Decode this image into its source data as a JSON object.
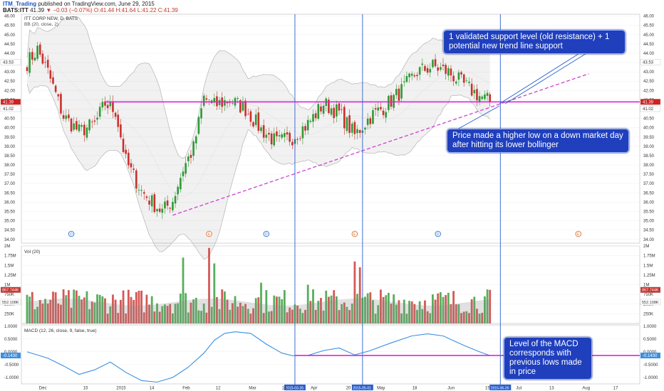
{
  "header": {
    "brand": "ITM_Trading",
    "published_text": "published on TradingView.com, June 29, 2015",
    "symbol": "BATS:ITT",
    "last": "41.39",
    "change": "▼ −0.03 (−0.07%)",
    "ohlc": "O:41.44 H:41.64 L:41.22 C:41.39"
  },
  "annotations": {
    "support": "1 validated support level (old resistance) + 1 potential new trend line support",
    "higher_low": "Price made a higher low on a down market day after hitting its lower bollinger",
    "macd": "Level of the MACD corresponds with previous lows made in price"
  },
  "colors": {
    "up": "#2e9a35",
    "down": "#c9302c",
    "support": "#e020e0",
    "trend": "#d040d0",
    "bollinger": "#bbbbbb",
    "vline": "#2a5fd0",
    "macd": "#3a8fe0",
    "annotation_bg": "#1f3fbd"
  },
  "chart_data": [
    {
      "type": "candlestick",
      "title": "ITT CORP NEW, D, BATS",
      "indicator": "BB (20, close, 2)",
      "ylim": [
        33.8,
        46.1
      ],
      "yticks": [
        "34.00",
        "34.50",
        "35.00",
        "35.50",
        "36.00",
        "36.50",
        "37.00",
        "37.50",
        "38.00",
        "38.50",
        "39.00",
        "39.50",
        "40.00",
        "40.50",
        "41.00",
        "41.50",
        "42.00",
        "42.50",
        "43.00",
        "43.50",
        "44.00",
        "44.50",
        "45.00",
        "45.50",
        "46.00"
      ],
      "xticks": [
        "Dec",
        "15",
        "2015",
        "14",
        "Feb",
        "12",
        "Mar",
        "16",
        "Apr",
        "20",
        "May",
        "18",
        "Jun",
        "15",
        "Jul",
        "13",
        "Aug",
        "17"
      ],
      "price_tags": [
        "43.53",
        "41.39",
        "41.02"
      ],
      "support_level": 41.39,
      "trendline": {
        "start": [
          "2015-01-29",
          35.3
        ],
        "end": [
          "2015-07-25",
          42.9
        ]
      },
      "anchors": [
        {
          "d": 0,
          "p": 43.5
        },
        {
          "d": 4,
          "p": 44.2
        },
        {
          "d": 8,
          "p": 43.0
        },
        {
          "d": 14,
          "p": 40.6
        },
        {
          "d": 20,
          "p": 39.8
        },
        {
          "d": 26,
          "p": 40.2
        },
        {
          "d": 30,
          "p": 41.3
        },
        {
          "d": 34,
          "p": 40.9
        },
        {
          "d": 38,
          "p": 38.2
        },
        {
          "d": 44,
          "p": 36.6
        },
        {
          "d": 48,
          "p": 36.0
        },
        {
          "d": 52,
          "p": 35.5
        },
        {
          "d": 56,
          "p": 36.1
        },
        {
          "d": 60,
          "p": 37.8
        },
        {
          "d": 64,
          "p": 38.9
        },
        {
          "d": 68,
          "p": 41.6
        },
        {
          "d": 72,
          "p": 41.2
        },
        {
          "d": 78,
          "p": 41.5
        },
        {
          "d": 84,
          "p": 41.0
        },
        {
          "d": 90,
          "p": 39.9
        },
        {
          "d": 96,
          "p": 39.2
        },
        {
          "d": 102,
          "p": 39.5
        },
        {
          "d": 108,
          "p": 40.2
        },
        {
          "d": 114,
          "p": 41.3
        },
        {
          "d": 120,
          "p": 40.8
        },
        {
          "d": 126,
          "p": 39.6
        },
        {
          "d": 132,
          "p": 40.6
        },
        {
          "d": 138,
          "p": 41.2
        },
        {
          "d": 144,
          "p": 42.0
        },
        {
          "d": 150,
          "p": 43.0
        },
        {
          "d": 156,
          "p": 43.3
        },
        {
          "d": 162,
          "p": 43.0
        },
        {
          "d": 168,
          "p": 42.3
        },
        {
          "d": 174,
          "p": 41.7
        },
        {
          "d": 178,
          "p": 41.4
        }
      ],
      "events": [
        "D",
        "E",
        "D",
        "E",
        "D",
        "E"
      ]
    },
    {
      "type": "bar",
      "title": "Vol (20)",
      "ylim": [
        0,
        2000000
      ],
      "yticks": [
        "250K",
        "500K",
        "750K",
        "1M",
        "1.25M",
        "1.5M",
        "1.75M",
        "2M"
      ],
      "price_tags": [
        "867.744K",
        "552.108K"
      ],
      "average_level": 552108,
      "last_value": 867744,
      "spikes": [
        {
          "d": 60,
          "v": 1700000
        },
        {
          "d": 70,
          "v": 1950000
        },
        {
          "d": 72,
          "v": 1550000
        },
        {
          "d": 90,
          "v": 1050000
        },
        {
          "d": 108,
          "v": 1000000
        },
        {
          "d": 126,
          "v": 1600000
        },
        {
          "d": 128,
          "v": 1450000
        },
        {
          "d": 178,
          "v": 867744
        }
      ]
    },
    {
      "type": "line",
      "title": "MACD (12, 26, close, 9, false, true)",
      "ylim": [
        -1.25,
        1.05
      ],
      "yticks": [
        "1.0000",
        "0.5000",
        "0.0000",
        "-0.5000",
        "-1.0000"
      ],
      "price_tags": [
        "-0.1430"
      ],
      "level": -0.143,
      "series": [
        {
          "x": 0,
          "y": 0.0
        },
        {
          "x": 8,
          "y": -0.25
        },
        {
          "x": 14,
          "y": -0.55
        },
        {
          "x": 20,
          "y": -0.88
        },
        {
          "x": 26,
          "y": -0.7
        },
        {
          "x": 32,
          "y": -0.4
        },
        {
          "x": 38,
          "y": -0.8
        },
        {
          "x": 44,
          "y": -1.12
        },
        {
          "x": 50,
          "y": -1.18
        },
        {
          "x": 56,
          "y": -1.0
        },
        {
          "x": 62,
          "y": -0.6
        },
        {
          "x": 68,
          "y": -0.05
        },
        {
          "x": 72,
          "y": 0.45
        },
        {
          "x": 76,
          "y": 0.72
        },
        {
          "x": 80,
          "y": 0.78
        },
        {
          "x": 86,
          "y": 0.72
        },
        {
          "x": 92,
          "y": 0.3
        },
        {
          "x": 98,
          "y": -0.05
        },
        {
          "x": 102,
          "y": -0.15
        },
        {
          "x": 108,
          "y": -0.14
        },
        {
          "x": 114,
          "y": 0.05
        },
        {
          "x": 120,
          "y": 0.15
        },
        {
          "x": 126,
          "y": -0.12
        },
        {
          "x": 132,
          "y": 0.05
        },
        {
          "x": 140,
          "y": 0.35
        },
        {
          "x": 148,
          "y": 0.62
        },
        {
          "x": 154,
          "y": 0.7
        },
        {
          "x": 160,
          "y": 0.62
        },
        {
          "x": 168,
          "y": 0.25
        },
        {
          "x": 174,
          "y": 0.0
        },
        {
          "x": 178,
          "y": -0.143
        }
      ]
    }
  ],
  "vertical_dates": [
    "2015-03-26",
    "2015-05-01",
    "2015-06-26"
  ]
}
